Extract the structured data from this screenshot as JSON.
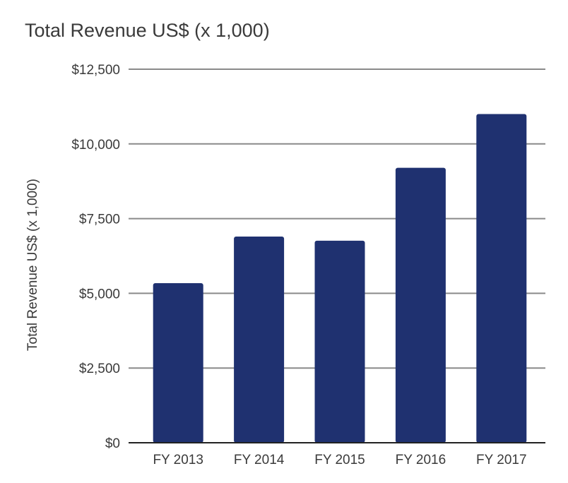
{
  "chart_data": {
    "type": "bar",
    "title": "Total Revenue US$ (x 1,000)",
    "xlabel": "",
    "ylabel": "Total Revenue US$ (x 1,000)",
    "categories": [
      "FY 2013",
      "FY 2014",
      "FY 2015",
      "FY 2016",
      "FY 2017"
    ],
    "values": [
      5340,
      6900,
      6760,
      9200,
      11000
    ],
    "ylim": [
      0,
      12500
    ],
    "yticks": [
      0,
      2500,
      5000,
      7500,
      10000,
      12500
    ],
    "ytick_labels": [
      "$0",
      "$2,500",
      "$5,000",
      "$7,500",
      "$10,000",
      "$12,500"
    ],
    "grid": true,
    "legend": "none",
    "bar_color": "#1f3170"
  }
}
